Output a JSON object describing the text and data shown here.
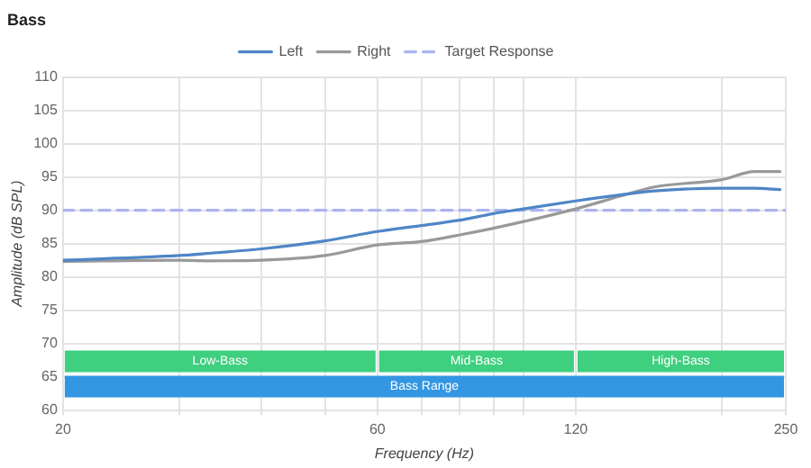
{
  "chart_data": {
    "type": "line",
    "title": "Bass",
    "xlabel": "Frequency (Hz)",
    "ylabel": "Amplitude (dB SPL)",
    "log": "x",
    "xlim": [
      20,
      250
    ],
    "xticks": [
      20,
      {
        "value": 30,
        "label": null
      },
      {
        "value": 40,
        "label": null
      },
      {
        "value": 50,
        "label": null
      },
      60,
      {
        "value": 70,
        "label": null
      },
      {
        "value": 80,
        "label": null
      },
      {
        "value": 90,
        "label": null
      },
      {
        "value": 100,
        "label": null
      },
      120,
      {
        "value": 200,
        "label": null
      },
      250
    ],
    "ylim": [
      60,
      110
    ],
    "yticks": [
      60,
      65,
      70,
      75,
      80,
      85,
      90,
      95,
      100,
      105,
      110
    ],
    "grid": true,
    "legend": "top",
    "marker": "none",
    "line_style": "solid",
    "series": [
      {
        "name": "Left",
        "color": "#4f86c6",
        "x": [
          20,
          30,
          33,
          40,
          50,
          60,
          70,
          80,
          90,
          100,
          120,
          140,
          158,
          200,
          224,
          245
        ],
        "values": [
          82.5,
          83.2,
          83.5,
          84.2,
          85.4,
          86.8,
          87.7,
          88.5,
          89.5,
          90.2,
          91.4,
          92.3,
          92.9,
          93.3,
          93.3,
          93.1
        ]
      },
      {
        "name": "Right",
        "color": "#999999",
        "x": [
          20,
          30,
          33,
          40,
          50,
          60,
          70,
          80,
          90,
          100,
          120,
          140,
          158,
          200,
          224,
          245
        ],
        "values": [
          82.3,
          82.5,
          82.4,
          82.5,
          83.2,
          84.8,
          85.3,
          86.3,
          87.3,
          88.3,
          90.2,
          92.1,
          93.5,
          94.6,
          95.8,
          95.8
        ]
      },
      {
        "name": "Target Response",
        "color": "#aab4f0",
        "line_style": "dashed",
        "x": [
          20,
          250
        ],
        "values": [
          90,
          90
        ]
      }
    ],
    "bands": [
      {
        "axis": "x",
        "from": 20,
        "to": 60,
        "label": "Low-Bass",
        "color": "#3ecf7f"
      },
      {
        "axis": "x",
        "from": 60,
        "to": 120,
        "label": "Mid-Bass",
        "color": "#3ecf7f"
      },
      {
        "axis": "x",
        "from": 120,
        "to": 250,
        "label": "High-Bass",
        "color": "#3ecf7f"
      },
      {
        "axis": "x",
        "from": 20,
        "to": 250,
        "label": "Bass Range",
        "color": "#3396e2"
      }
    ]
  }
}
